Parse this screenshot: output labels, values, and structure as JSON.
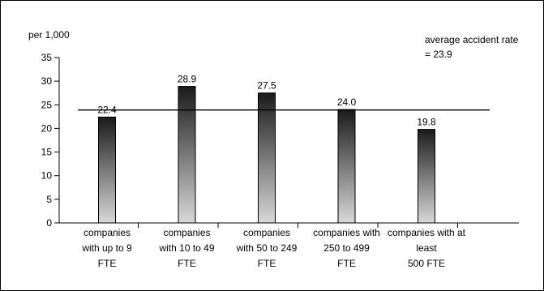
{
  "chart_data": {
    "type": "bar",
    "ylabel": "per 1,000",
    "ylim": [
      0,
      35
    ],
    "yticks": [
      0,
      5,
      10,
      15,
      20,
      25,
      30,
      35
    ],
    "grid": false,
    "categories": [
      [
        "companies",
        "with up to 9",
        "FTE"
      ],
      [
        "companies",
        "with 10 to 49",
        "FTE"
      ],
      [
        "companies",
        "with 50 to 249",
        "FTE"
      ],
      [
        "companies with",
        "250 to 499",
        "FTE"
      ],
      [
        "companies with at",
        "least",
        "500 FTE"
      ]
    ],
    "values": [
      22.4,
      28.9,
      27.5,
      24.0,
      19.8
    ],
    "value_labels": [
      "22.4",
      "28.9",
      "27.5",
      "24.0",
      "19.8"
    ],
    "reference_line": {
      "value": 23.9,
      "label_lines": [
        "average accident rate",
        "= 23.9"
      ]
    },
    "bar_gradient": [
      "#1a1a1a",
      "#d8d8d8"
    ]
  }
}
